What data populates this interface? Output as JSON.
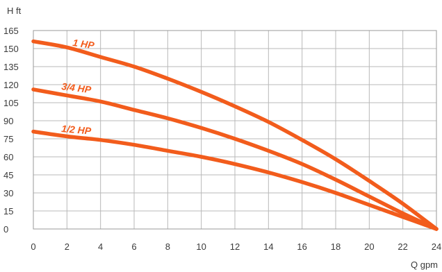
{
  "chart_data": {
    "type": "line",
    "xlabel": "Q gpm",
    "ylabel": "H ft",
    "xlim": [
      0,
      24
    ],
    "ylim": [
      0,
      165
    ],
    "xticks": [
      0,
      2,
      4,
      6,
      8,
      10,
      12,
      14,
      16,
      18,
      20,
      22,
      24
    ],
    "yticks": [
      0,
      15,
      30,
      45,
      60,
      75,
      90,
      105,
      120,
      135,
      150,
      165
    ],
    "grid": true,
    "line_color": "#f25c1c",
    "label_color": "#f25c1c",
    "series": [
      {
        "name": "1 HP",
        "x": [
          0,
          2,
          4,
          6,
          8,
          10,
          12,
          14,
          16,
          18,
          20,
          22,
          24
        ],
        "y": [
          156,
          151,
          143,
          135,
          125,
          114,
          102,
          89,
          74,
          58,
          40,
          21,
          0
        ]
      },
      {
        "name": "3/4 HP",
        "x": [
          0,
          2,
          4,
          6,
          8,
          10,
          12,
          14,
          16,
          18,
          20,
          22,
          24
        ],
        "y": [
          116,
          111,
          106,
          99,
          92,
          84,
          75,
          65,
          54,
          41,
          27,
          13,
          0
        ]
      },
      {
        "name": "1/2 HP",
        "x": [
          0,
          2,
          4,
          6,
          8,
          10,
          12,
          14,
          16,
          18,
          20,
          22,
          24
        ],
        "y": [
          81,
          77,
          74,
          70,
          65,
          60,
          54,
          47,
          39,
          30,
          20,
          10,
          0
        ]
      }
    ]
  }
}
